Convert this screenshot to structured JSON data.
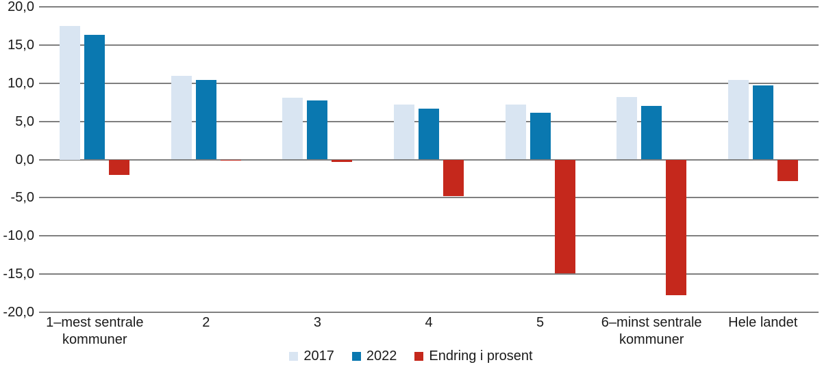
{
  "chart_data": {
    "type": "bar",
    "title": "",
    "categories": [
      "1–mest sentrale kommuner",
      "2",
      "3",
      "4",
      "5",
      "6–minst sentrale kommuner",
      "Hele landet"
    ],
    "series": [
      {
        "name": "2017",
        "color": "#d9e5f2",
        "values": [
          17.5,
          11.0,
          8.1,
          7.2,
          7.2,
          8.2,
          10.4
        ]
      },
      {
        "name": "2022",
        "color": "#0a78b0",
        "values": [
          16.3,
          10.4,
          7.7,
          6.7,
          6.1,
          7.0,
          9.7
        ]
      },
      {
        "name": "Endring i prosent",
        "color": "#c5281c",
        "values": [
          -2.0,
          -0.1,
          -0.3,
          -4.8,
          -14.9,
          -17.8,
          -2.8
        ]
      }
    ],
    "ylim": [
      -20,
      20
    ],
    "yticks": [
      20,
      15,
      10,
      5,
      0,
      -5,
      -10,
      -15,
      -20
    ],
    "ytick_labels": [
      "20,0",
      "15,0",
      "10,0",
      "5,0",
      "0,0",
      "-5,0",
      "-10,0",
      "-15,0",
      "-20,0"
    ],
    "grid": true,
    "legend_position": "bottom"
  },
  "colors": {
    "background": "#ffffff",
    "gridline": "#7f7f7f",
    "text": "#1a1a1a"
  }
}
